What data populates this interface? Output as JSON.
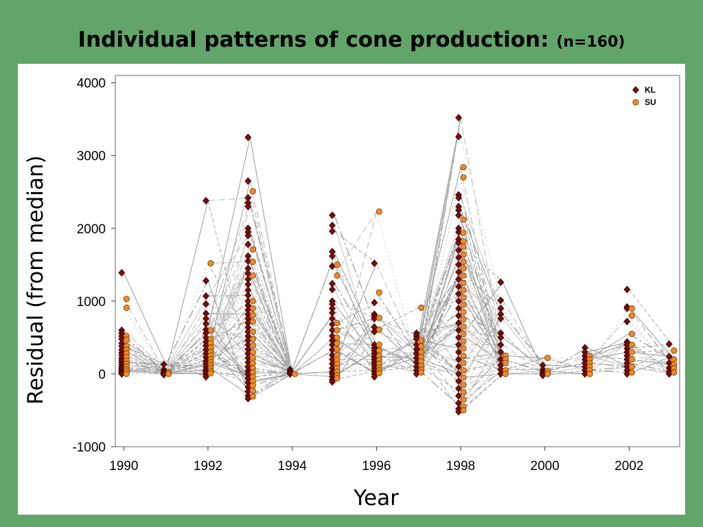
{
  "slide": {
    "title_main": "Individual patterns of cone production:",
    "title_sub": "(n=160)"
  },
  "chart_data": {
    "type": "scatter",
    "title": "",
    "xlabel": "Year",
    "ylabel": "Residual (from median)",
    "xlim": [
      1989.8,
      2003.2
    ],
    "ylim": [
      -1000,
      4100
    ],
    "x_ticks": [
      "1990",
      "1992",
      "1994",
      "1996",
      "1998",
      "2000",
      "2002"
    ],
    "y_ticks": [
      "4000",
      "3000",
      "2000",
      "1000",
      "0",
      "-1000"
    ],
    "legend_position": "top-right",
    "connecting_lines": true,
    "series": [
      {
        "name": "KL",
        "marker": "diamond",
        "color": "#7a0c0c",
        "points": [
          {
            "year": 1990,
            "values": [
              1390,
              600,
              560,
              520,
              480,
              420,
              380,
              330,
              290,
              260,
              220,
              190,
              160,
              130,
              100,
              80,
              60,
              40,
              20,
              10,
              0
            ]
          },
          {
            "year": 1991,
            "values": [
              130,
              60,
              30,
              10,
              0,
              -10
            ]
          },
          {
            "year": 1992,
            "values": [
              2380,
              1280,
              1070,
              960,
              830,
              760,
              690,
              610,
              560,
              500,
              440,
              390,
              330,
              280,
              230,
              180,
              140,
              100,
              60,
              30,
              0,
              -40
            ]
          },
          {
            "year": 1993,
            "values": [
              3250,
              2650,
              2420,
              2350,
              2300,
              2000,
              1950,
              1900,
              1780,
              1620,
              1550,
              1450,
              1380,
              1300,
              1230,
              1150,
              1080,
              1000,
              940,
              880,
              820,
              760,
              700,
              640,
              580,
              520,
              460,
              400,
              340,
              280,
              220,
              160,
              100,
              40,
              0,
              -60,
              -120,
              -180,
              -240,
              -300,
              -340
            ]
          },
          {
            "year": 1994,
            "values": [
              60,
              30,
              10,
              0
            ]
          },
          {
            "year": 1995,
            "values": [
              2180,
              2040,
              1960,
              1680,
              1620,
              1480,
              1240,
              1160,
              1000,
              960,
              900,
              840,
              760,
              680,
              600,
              520,
              460,
              400,
              330,
              260,
              200,
              140,
              80,
              30,
              0,
              -40,
              -80,
              -110
            ]
          },
          {
            "year": 1996,
            "values": [
              1520,
              980,
              820,
              790,
              760,
              640,
              580,
              400,
              360,
              320,
              280,
              240,
              200,
              160,
              120,
              80,
              40,
              0,
              -40
            ]
          },
          {
            "year": 1997,
            "values": [
              560,
              520,
              480,
              400,
              340,
              280,
              220,
              160,
              100,
              50,
              0
            ]
          },
          {
            "year": 1998,
            "values": [
              3520,
              3260,
              2460,
              2420,
              2300,
              2250,
              2180,
              2000,
              1950,
              1850,
              1800,
              1700,
              1600,
              1500,
              1400,
              1300,
              1200,
              1100,
              1000,
              900,
              800,
              700,
              600,
              500,
              400,
              300,
              200,
              100,
              0,
              -100,
              -200,
              -300,
              -400,
              -480,
              -520
            ]
          },
          {
            "year": 1999,
            "values": [
              1260,
              1010,
              900,
              820,
              760,
              560,
              500,
              400,
              300,
              200,
              120,
              60,
              0
            ]
          },
          {
            "year": 2000,
            "values": [
              120,
              60,
              20,
              0,
              -20
            ]
          },
          {
            "year": 2001,
            "values": [
              360,
              300,
              250,
              200,
              150,
              100,
              50,
              0
            ]
          },
          {
            "year": 2002,
            "values": [
              1160,
              920,
              900,
              720,
              440,
              400,
              350,
              300,
              250,
              200,
              150,
              100,
              50,
              0
            ]
          },
          {
            "year": 2003,
            "values": [
              410,
              240,
              150,
              80,
              30,
              0
            ]
          }
        ]
      },
      {
        "name": "SU",
        "marker": "circle",
        "color": "#f08a24",
        "points": [
          {
            "year": 1990,
            "values": [
              1030,
              910,
              520,
              470,
              380,
              330,
              280,
              230,
              180,
              140,
              100,
              60,
              30,
              0
            ]
          },
          {
            "year": 1991,
            "values": [
              20,
              0
            ]
          },
          {
            "year": 1992,
            "values": [
              1520,
              600,
              480,
              420,
              360,
              300,
              250,
              200,
              160,
              120,
              80,
              40,
              10
            ]
          },
          {
            "year": 1993,
            "values": [
              2510,
              1710,
              1540,
              1350,
              1000,
              900,
              810,
              720,
              580,
              480,
              390,
              300,
              220,
              150,
              80,
              20,
              -40,
              -100,
              -160,
              -230,
              -310
            ]
          },
          {
            "year": 1994,
            "values": [
              0
            ]
          },
          {
            "year": 1995,
            "values": [
              1500,
              1350,
              700,
              600,
              500,
              420,
              340,
              260,
              190,
              130,
              80,
              30,
              -20,
              -60
            ]
          },
          {
            "year": 1996,
            "values": [
              2230,
              1120,
              770,
              610,
              400,
              320,
              250,
              190,
              140,
              90,
              50,
              10
            ]
          },
          {
            "year": 1997,
            "values": [
              910,
              460,
              380,
              300,
              230,
              170,
              110,
              60,
              20
            ]
          },
          {
            "year": 1998,
            "values": [
              2840,
              2700,
              2120,
              1940,
              1820,
              1750,
              1640,
              1540,
              1450,
              1350,
              1250,
              1150,
              1050,
              950,
              850,
              750,
              650,
              550,
              450,
              350,
              250,
              150,
              50,
              -50,
              -150,
              -250,
              -350,
              -450,
              -500
            ]
          },
          {
            "year": 1999,
            "values": [
              250,
              200,
              150,
              50,
              0
            ]
          },
          {
            "year": 2000,
            "values": [
              220,
              40,
              0
            ]
          },
          {
            "year": 2001,
            "values": [
              250,
              200,
              150,
              100,
              50,
              0
            ]
          },
          {
            "year": 2002,
            "values": [
              900,
              800,
              550,
              400,
              300,
              200,
              100,
              20
            ]
          },
          {
            "year": 2003,
            "values": [
              320,
              200,
              130,
              80,
              20
            ]
          }
        ]
      }
    ]
  }
}
